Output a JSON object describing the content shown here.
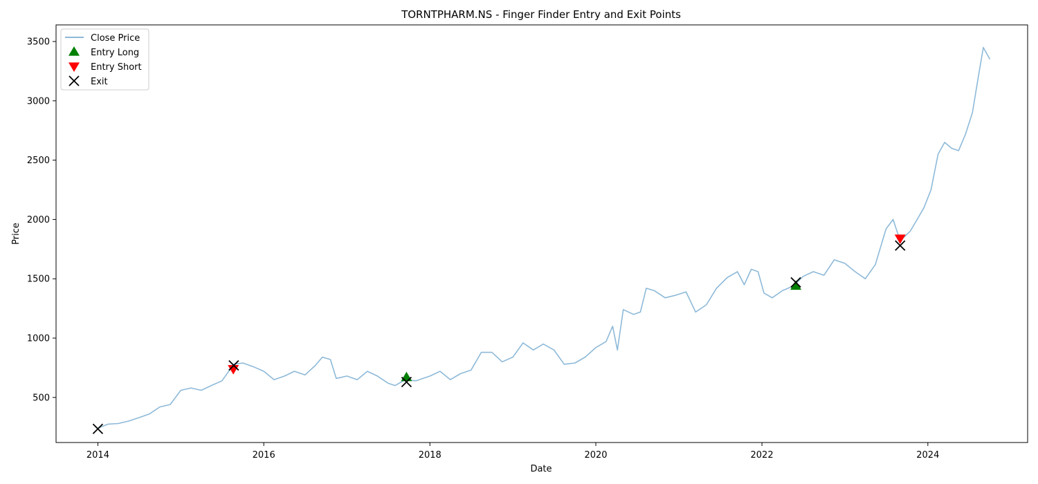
{
  "chart_data": {
    "type": "line",
    "title": "TORNTPHARM.NS - Finger Finder Entry and Exit Points",
    "xlabel": "Date",
    "ylabel": "Price",
    "xlim": [
      "2013-07-01",
      "2025-03-15"
    ],
    "ylim": [
      120,
      3640
    ],
    "x_ticks": [
      "2014",
      "2016",
      "2018",
      "2020",
      "2022",
      "2024"
    ],
    "y_ticks": [
      500,
      1000,
      1500,
      2000,
      2500,
      3000,
      3500
    ],
    "grid": false,
    "legend_position": "top-left",
    "legend": [
      "Close Price",
      "Entry Long",
      "Entry Short",
      "Exit"
    ],
    "series": [
      {
        "name": "Close Price",
        "color": "#8db9d8",
        "points": [
          [
            "2014-01-01",
            240
          ],
          [
            "2014-02-15",
            275
          ],
          [
            "2014-04-01",
            280
          ],
          [
            "2014-05-15",
            300
          ],
          [
            "2014-07-01",
            330
          ],
          [
            "2014-08-15",
            360
          ],
          [
            "2014-10-01",
            420
          ],
          [
            "2014-11-15",
            440
          ],
          [
            "2015-01-01",
            560
          ],
          [
            "2015-02-15",
            580
          ],
          [
            "2015-04-01",
            560
          ],
          [
            "2015-05-15",
            600
          ],
          [
            "2015-07-01",
            640
          ],
          [
            "2015-08-22",
            780
          ],
          [
            "2015-10-01",
            790
          ],
          [
            "2015-11-15",
            760
          ],
          [
            "2016-01-01",
            720
          ],
          [
            "2016-02-15",
            650
          ],
          [
            "2016-04-01",
            680
          ],
          [
            "2016-05-15",
            720
          ],
          [
            "2016-07-01",
            690
          ],
          [
            "2016-08-15",
            770
          ],
          [
            "2016-09-15",
            840
          ],
          [
            "2016-10-20",
            820
          ],
          [
            "2016-11-15",
            660
          ],
          [
            "2017-01-01",
            680
          ],
          [
            "2017-02-15",
            650
          ],
          [
            "2017-04-01",
            720
          ],
          [
            "2017-05-15",
            680
          ],
          [
            "2017-07-01",
            620
          ],
          [
            "2017-08-01",
            600
          ],
          [
            "2017-09-15",
            650
          ],
          [
            "2017-11-01",
            640
          ],
          [
            "2018-01-01",
            680
          ],
          [
            "2018-02-15",
            720
          ],
          [
            "2018-04-01",
            650
          ],
          [
            "2018-05-15",
            700
          ],
          [
            "2018-07-01",
            730
          ],
          [
            "2018-08-15",
            880
          ],
          [
            "2018-10-01",
            880
          ],
          [
            "2018-11-15",
            800
          ],
          [
            "2019-01-01",
            840
          ],
          [
            "2019-02-15",
            960
          ],
          [
            "2019-04-01",
            900
          ],
          [
            "2019-05-15",
            950
          ],
          [
            "2019-07-01",
            900
          ],
          [
            "2019-08-15",
            780
          ],
          [
            "2019-10-01",
            790
          ],
          [
            "2019-11-15",
            840
          ],
          [
            "2020-01-01",
            920
          ],
          [
            "2020-02-15",
            970
          ],
          [
            "2020-03-15",
            1100
          ],
          [
            "2020-04-05",
            900
          ],
          [
            "2020-05-01",
            1240
          ],
          [
            "2020-06-15",
            1200
          ],
          [
            "2020-07-15",
            1220
          ],
          [
            "2020-08-10",
            1420
          ],
          [
            "2020-09-15",
            1400
          ],
          [
            "2020-11-01",
            1340
          ],
          [
            "2020-12-15",
            1360
          ],
          [
            "2021-02-01",
            1390
          ],
          [
            "2021-03-15",
            1220
          ],
          [
            "2021-05-01",
            1280
          ],
          [
            "2021-06-15",
            1420
          ],
          [
            "2021-08-01",
            1510
          ],
          [
            "2021-09-15",
            1560
          ],
          [
            "2021-10-15",
            1450
          ],
          [
            "2021-11-15",
            1580
          ],
          [
            "2021-12-15",
            1560
          ],
          [
            "2022-01-10",
            1380
          ],
          [
            "2022-02-15",
            1340
          ],
          [
            "2022-04-01",
            1400
          ],
          [
            "2022-05-20",
            1440
          ],
          [
            "2022-07-01",
            1520
          ],
          [
            "2022-08-15",
            1560
          ],
          [
            "2022-10-01",
            1530
          ],
          [
            "2022-11-15",
            1660
          ],
          [
            "2023-01-01",
            1630
          ],
          [
            "2023-02-15",
            1560
          ],
          [
            "2023-04-01",
            1500
          ],
          [
            "2023-05-15",
            1620
          ],
          [
            "2023-07-01",
            1920
          ],
          [
            "2023-08-01",
            2000
          ],
          [
            "2023-09-01",
            1820
          ],
          [
            "2023-10-15",
            1900
          ],
          [
            "2023-11-15",
            2000
          ],
          [
            "2023-12-15",
            2100
          ],
          [
            "2024-01-15",
            2250
          ],
          [
            "2024-02-15",
            2550
          ],
          [
            "2024-03-15",
            2650
          ],
          [
            "2024-04-15",
            2600
          ],
          [
            "2024-05-15",
            2580
          ],
          [
            "2024-06-15",
            2720
          ],
          [
            "2024-07-15",
            2900
          ],
          [
            "2024-08-10",
            3200
          ],
          [
            "2024-09-01",
            3450
          ],
          [
            "2024-09-30",
            3350
          ]
        ]
      }
    ],
    "entry_long": {
      "name": "Entry Long",
      "color": "#008000",
      "points": [
        [
          "2017-09-20",
          670
        ],
        [
          "2022-05-30",
          1440
        ]
      ]
    },
    "entry_short": {
      "name": "Entry Short",
      "color": "#ff0000",
      "points": [
        [
          "2015-08-20",
          740
        ],
        [
          "2023-09-01",
          1840
        ]
      ]
    },
    "exit": {
      "name": "Exit",
      "color": "#000000",
      "points": [
        [
          "2014-01-01",
          235
        ],
        [
          "2015-08-22",
          770
        ],
        [
          "2017-09-20",
          630
        ],
        [
          "2022-05-30",
          1470
        ],
        [
          "2023-09-01",
          1780
        ]
      ]
    }
  }
}
